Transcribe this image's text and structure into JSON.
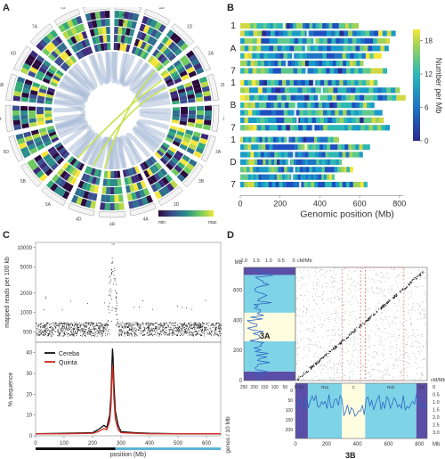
{
  "panels": {
    "a": "A",
    "b": "B",
    "c": "C",
    "d": "D"
  },
  "panel_a": {
    "ring_letters": [
      "a",
      "b",
      "c",
      "d",
      "e"
    ],
    "colorbar": {
      "min_label": "min",
      "max_label": "max"
    },
    "chromosome_labels": [
      "1A",
      "1B",
      "1D",
      "2A",
      "2B",
      "2D",
      "3A",
      "3B",
      "3D",
      "4A",
      "4B",
      "4D",
      "5A",
      "5B",
      "5D",
      "6A",
      "6B",
      "6D",
      "7A",
      "7B",
      "7D"
    ]
  },
  "chart_data": [
    {
      "type": "heatmap",
      "panel": "B",
      "xlabel": "Genomic position (Mb)",
      "x_ticks": [
        0,
        200,
        400,
        600,
        800
      ],
      "xlim": [
        0,
        850
      ],
      "groups": [
        {
          "name": "A",
          "row_labels": [
            "1",
            "A",
            "7"
          ],
          "lengths": [
            594,
            780,
            750,
            745,
            709,
            618,
            737
          ]
        },
        {
          "name": "B",
          "row_labels": [
            "1",
            "B",
            "7"
          ],
          "lengths": [
            689,
            801,
            830,
            673,
            713,
            720,
            750
          ]
        },
        {
          "name": "D",
          "row_labels": [
            "1",
            "D",
            "7"
          ],
          "lengths": [
            495,
            651,
            615,
            509,
            566,
            473,
            638
          ]
        }
      ],
      "colorbar": {
        "label": "Number per Mb",
        "ticks": [
          0,
          6,
          12,
          18
        ],
        "range": [
          0,
          20
        ]
      }
    },
    {
      "type": "scatter",
      "panel": "C-top",
      "ylabel": "mapped reads per 100 kb",
      "y_ticks": [
        500,
        1000,
        2000,
        5000,
        10000
      ],
      "ylim": [
        350,
        12000
      ],
      "scale": "log",
      "xlim": [
        0,
        650
      ],
      "baseline": 550,
      "peak_position": 270,
      "peak_value": 10000
    },
    {
      "type": "line",
      "panel": "C-bottom",
      "ylabel": "% sequence",
      "xlabel": "position (Mb)",
      "x_ticks": [
        0,
        100,
        200,
        300,
        400,
        500,
        600
      ],
      "y_ticks": [
        0,
        10,
        20,
        30,
        40
      ],
      "xlim": [
        0,
        650
      ],
      "ylim": [
        0,
        45
      ],
      "series": [
        {
          "name": "Cereba",
          "color": "#111111",
          "x": [
            0,
            100,
            200,
            220,
            240,
            250,
            260,
            265,
            268,
            270,
            272,
            275,
            280,
            290,
            300,
            350,
            400,
            500,
            600,
            650
          ],
          "y": [
            1,
            1.2,
            1.5,
            3,
            5,
            4,
            10,
            20,
            35,
            42,
            38,
            25,
            12,
            5,
            2,
            1.5,
            1.2,
            1,
            1,
            1
          ]
        },
        {
          "name": "Quinta",
          "color": "#d0281e",
          "x": [
            0,
            100,
            200,
            220,
            240,
            250,
            260,
            265,
            268,
            270,
            272,
            275,
            280,
            290,
            300,
            350,
            400,
            500,
            600,
            650
          ],
          "y": [
            1,
            1,
            1.2,
            2,
            3.5,
            3,
            7,
            15,
            28,
            34,
            30,
            18,
            8,
            3,
            1.5,
            1.2,
            1,
            1,
            1,
            1
          ]
        }
      ],
      "bottom_bar": [
        {
          "from": 0,
          "to": 280,
          "color": "#111111"
        },
        {
          "from": 280,
          "to": 650,
          "color": "#5fb2d6"
        }
      ]
    },
    {
      "type": "scatter",
      "panel": "D",
      "y_axis_unit": "Mb",
      "y_ticks": [
        0,
        200,
        400,
        600
      ],
      "x_ticks": [
        0,
        200,
        400,
        600,
        800
      ],
      "x_unit": "Mb",
      "left_label": "3A",
      "bottom_label": "3B",
      "left_cm_ticks": [
        "2.0",
        "1.5",
        "1.0",
        "0.5",
        "0"
      ],
      "left_cm_label": "cM/Mb",
      "bottom_cm_ticks": [
        "0",
        "0.5",
        "1.0",
        "1.5",
        "2.0",
        "2.5",
        "3.0"
      ],
      "bottom_cm_label": "cM/Mb",
      "gene_ticks": [
        250,
        200,
        150,
        100,
        50,
        0
      ],
      "gene_ticks_bottom": [
        0,
        50,
        100,
        150,
        200
      ],
      "gene_label": "genes / 10 Mb",
      "segment_labels": [
        "R1",
        "R2a",
        "C",
        "R2b",
        "R3"
      ]
    }
  ]
}
